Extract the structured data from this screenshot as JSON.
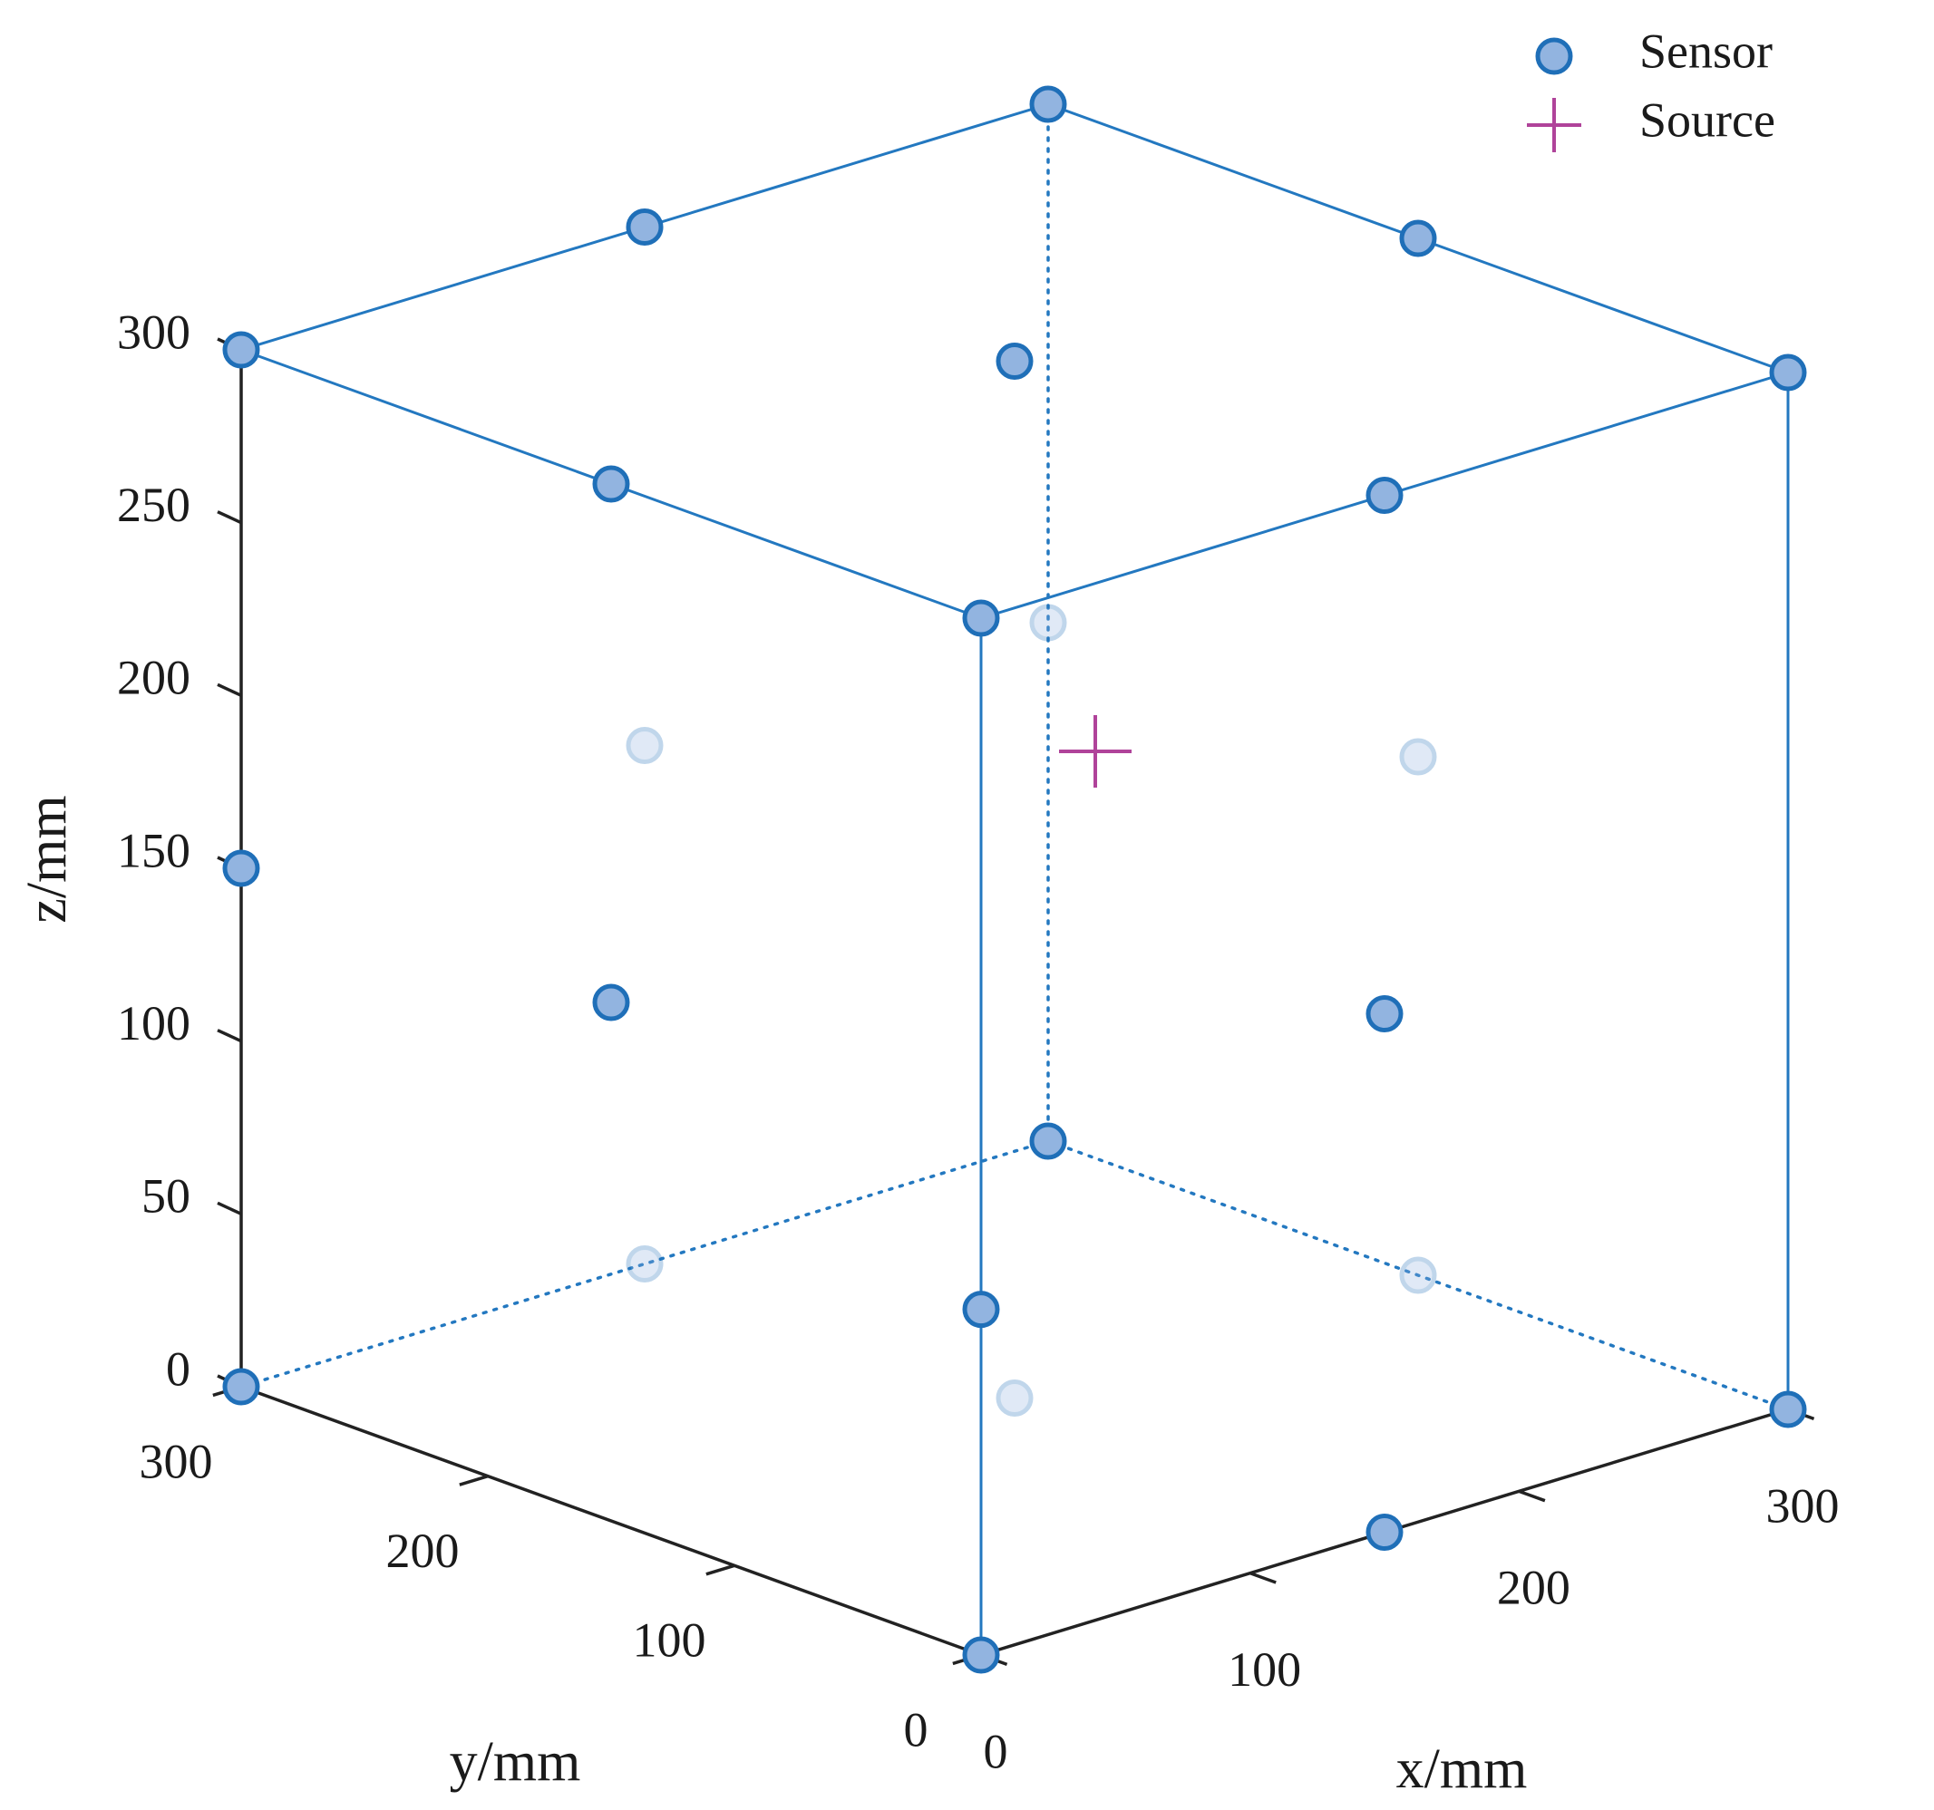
{
  "chart_data": {
    "type": "scatter",
    "xlabel": "x/mm",
    "ylabel": "y/mm",
    "zlabel": "z/mm",
    "xlim": [
      0,
      300
    ],
    "ylim": [
      0,
      300
    ],
    "zlim": [
      0,
      300
    ],
    "x_ticks": [
      0,
      100,
      200,
      300
    ],
    "y_ticks": [
      0,
      100,
      200,
      300
    ],
    "z_ticks": [
      0,
      50,
      100,
      150,
      200,
      250,
      300
    ],
    "grid": false,
    "box": true,
    "legend_position": "top-right",
    "colors": {
      "sensor_edge": "#1f6fb8",
      "sensor_fill": "#92b4e0",
      "source": "#b0439a",
      "axis": "#222222",
      "box_line": "#2378c0"
    },
    "series": [
      {
        "name": "Sensor",
        "marker": "circle",
        "points": [
          {
            "x": 0,
            "y": 0,
            "z": 0
          },
          {
            "x": 300,
            "y": 0,
            "z": 0
          },
          {
            "x": 0,
            "y": 300,
            "z": 0
          },
          {
            "x": 300,
            "y": 300,
            "z": 0
          },
          {
            "x": 0,
            "y": 0,
            "z": 300
          },
          {
            "x": 300,
            "y": 0,
            "z": 300
          },
          {
            "x": 0,
            "y": 300,
            "z": 300
          },
          {
            "x": 300,
            "y": 300,
            "z": 300
          },
          {
            "x": 0,
            "y": 0,
            "z": 100
          },
          {
            "x": 0,
            "y": 300,
            "z": 150
          },
          {
            "x": 150,
            "y": 0,
            "z": 300
          },
          {
            "x": 0,
            "y": 150,
            "z": 300
          },
          {
            "x": 300,
            "y": 150,
            "z": 300
          },
          {
            "x": 150,
            "y": 300,
            "z": 300
          },
          {
            "x": 150,
            "y": 0,
            "z": 0
          },
          {
            "x": 0,
            "y": 150,
            "z": 150
          },
          {
            "x": 150,
            "y": 0,
            "z": 150
          },
          {
            "x": 150,
            "y": 150,
            "z": 300
          },
          {
            "x": 150,
            "y": 150,
            "z": 0
          },
          {
            "x": 300,
            "y": 150,
            "z": 0
          },
          {
            "x": 150,
            "y": 300,
            "z": 0
          },
          {
            "x": 300,
            "y": 300,
            "z": 150
          },
          {
            "x": 300,
            "y": 150,
            "z": 150
          },
          {
            "x": 150,
            "y": 300,
            "z": 150
          }
        ]
      },
      {
        "name": "Source",
        "marker": "plus",
        "points": [
          {
            "x": 180,
            "y": 150,
            "z": 180
          }
        ]
      }
    ]
  }
}
